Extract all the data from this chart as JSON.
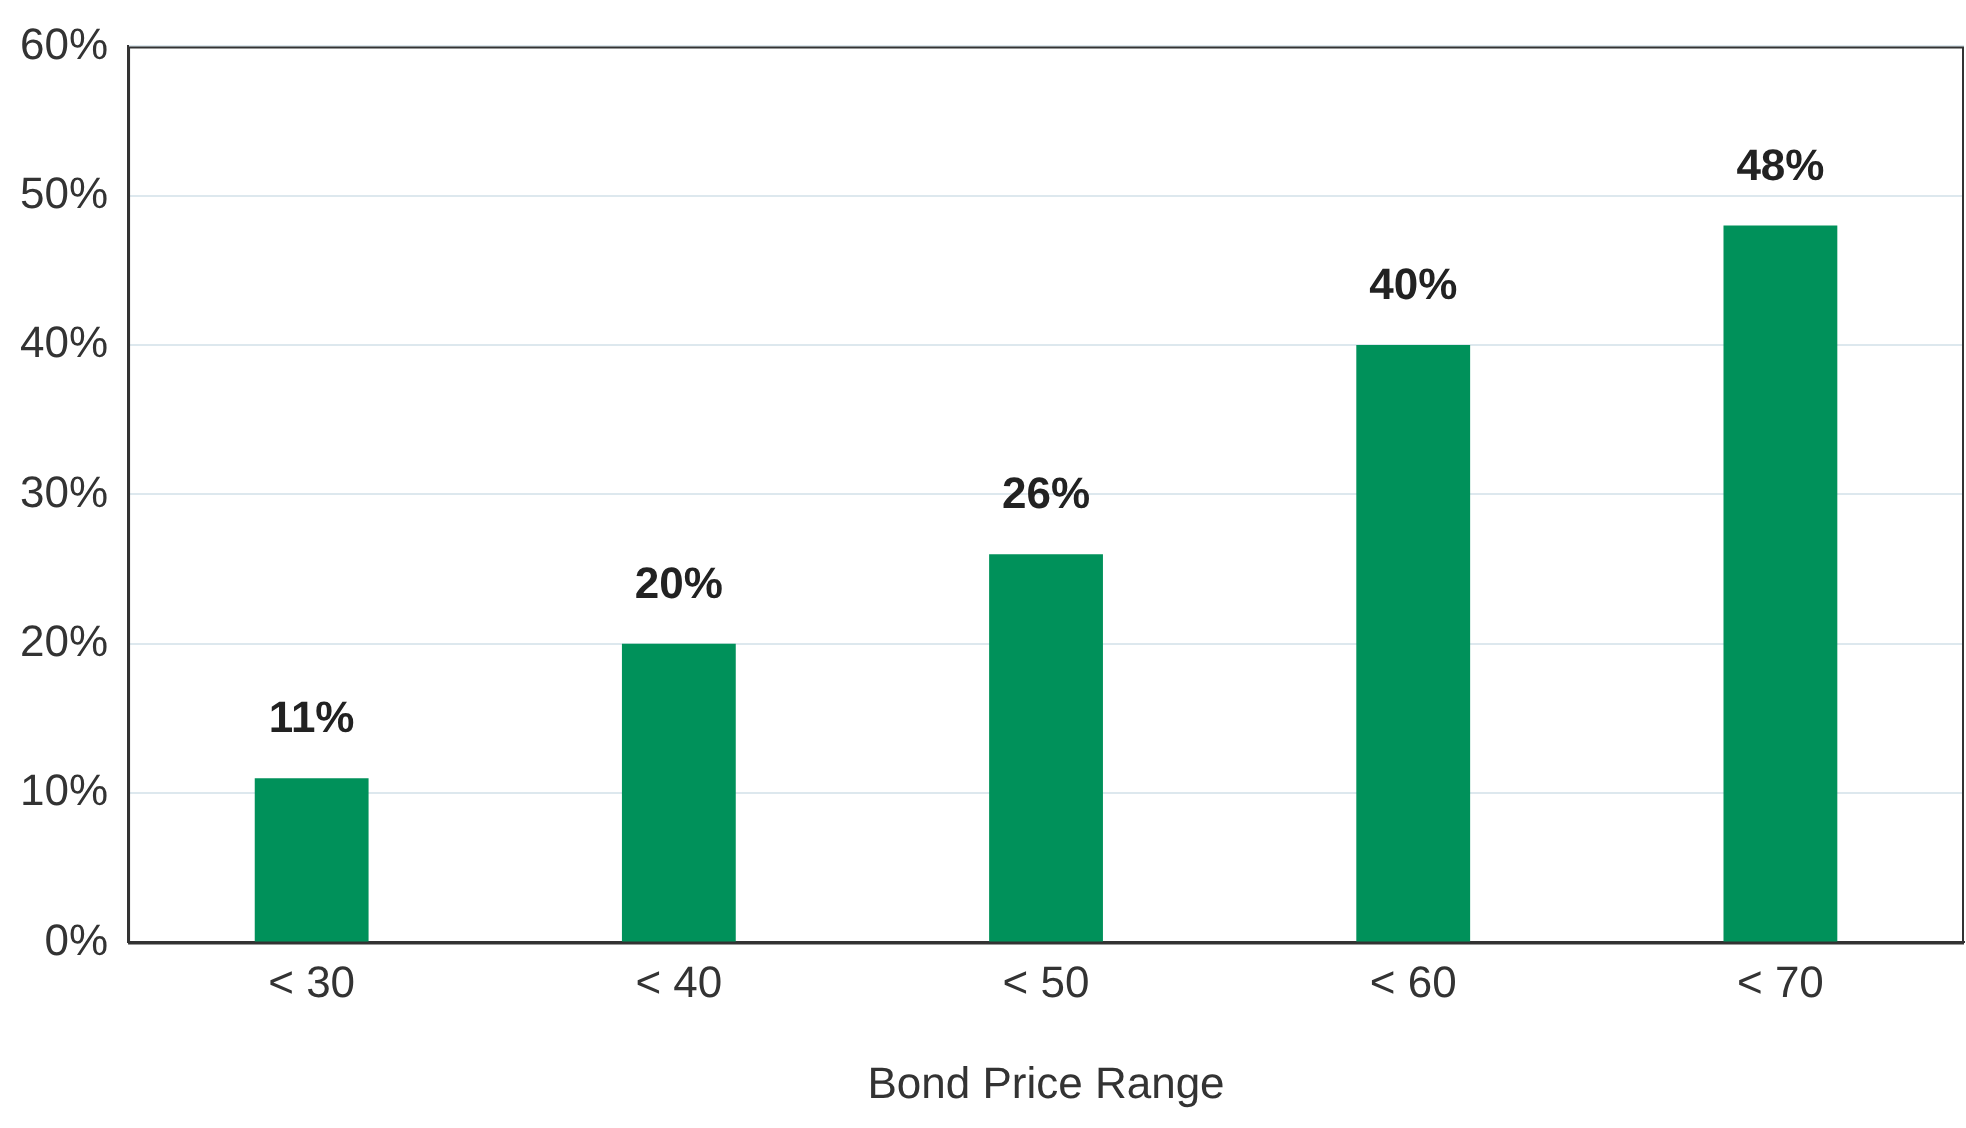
{
  "chart_data": {
    "type": "bar",
    "xlabel": "Bond Price Range",
    "categories": [
      "< 30",
      "< 40",
      "< 50",
      "< 60",
      "< 70"
    ],
    "values": [
      11,
      20,
      26,
      40,
      48
    ],
    "value_labels": [
      "11%",
      "20%",
      "26%",
      "40%",
      "48%"
    ],
    "color": "#00915a",
    "ylim": [
      0,
      60
    ],
    "yticks": [
      {
        "value": 0,
        "label": "0%"
      },
      {
        "value": 10,
        "label": "10%"
      },
      {
        "value": 20,
        "label": "20%"
      },
      {
        "value": 30,
        "label": "30%"
      },
      {
        "value": 40,
        "label": "40%"
      },
      {
        "value": 50,
        "label": "50%"
      },
      {
        "value": 60,
        "label": "60%"
      }
    ],
    "grid": "y",
    "legend": false
  }
}
